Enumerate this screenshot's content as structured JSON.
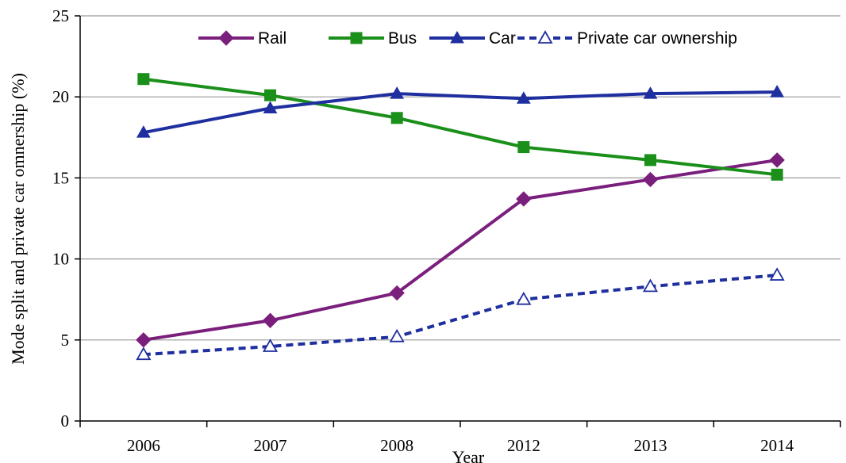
{
  "chart_data": {
    "type": "line",
    "title": "",
    "xlabel": "Year",
    "ylabel": "Mode split and private car omnership (%)",
    "categories": [
      "2006",
      "2007",
      "2008",
      "2012",
      "2013",
      "2014"
    ],
    "ylim": [
      0,
      25
    ],
    "yticks": [
      "0",
      "5",
      "10",
      "15",
      "20",
      "25"
    ],
    "grid": "horizontal",
    "legend_position": "top",
    "series": [
      {
        "name": "Rail",
        "values": [
          5.0,
          6.2,
          7.9,
          13.7,
          14.9,
          16.1
        ],
        "color": "#7B1F7D",
        "marker": "diamond",
        "dash": "solid"
      },
      {
        "name": "Bus",
        "values": [
          21.1,
          20.1,
          18.7,
          16.9,
          16.1,
          15.2
        ],
        "color": "#1A8F1A",
        "marker": "square",
        "dash": "solid"
      },
      {
        "name": "Car",
        "values": [
          17.8,
          19.3,
          20.2,
          19.9,
          20.2,
          20.3
        ],
        "color": "#1F2F9F",
        "marker": "triangle",
        "dash": "solid"
      },
      {
        "name": "Private car ownership",
        "values": [
          4.1,
          4.6,
          5.2,
          7.5,
          8.3,
          9.0
        ],
        "color": "#1F2F9F",
        "marker": "triangle-open",
        "dash": "dashed"
      }
    ]
  }
}
